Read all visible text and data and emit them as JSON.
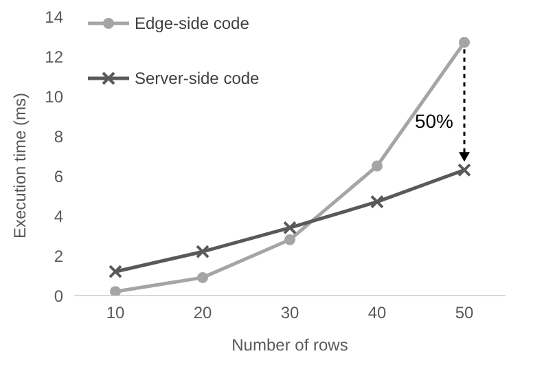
{
  "chart_data": {
    "type": "line",
    "xlabel": "Number of rows",
    "ylabel": "Execution time (ms)",
    "categories": [
      "10",
      "20",
      "30",
      "40",
      "50"
    ],
    "series": [
      {
        "name": "Edge-side code",
        "color": "#a5a5a5",
        "marker": "circle",
        "values": [
          0.2,
          0.9,
          2.8,
          6.5,
          12.7
        ]
      },
      {
        "name": "Server-side code",
        "color": "#595959",
        "marker": "cross",
        "values": [
          1.2,
          2.2,
          3.4,
          4.7,
          6.3
        ]
      }
    ],
    "ylim": [
      0,
      14
    ],
    "yticks": [
      0,
      2,
      4,
      6,
      8,
      10,
      12,
      14
    ],
    "grid": false,
    "legend": "top left",
    "annotations": [
      {
        "text": "50%",
        "x": "50",
        "y": 6.3
      }
    ]
  }
}
